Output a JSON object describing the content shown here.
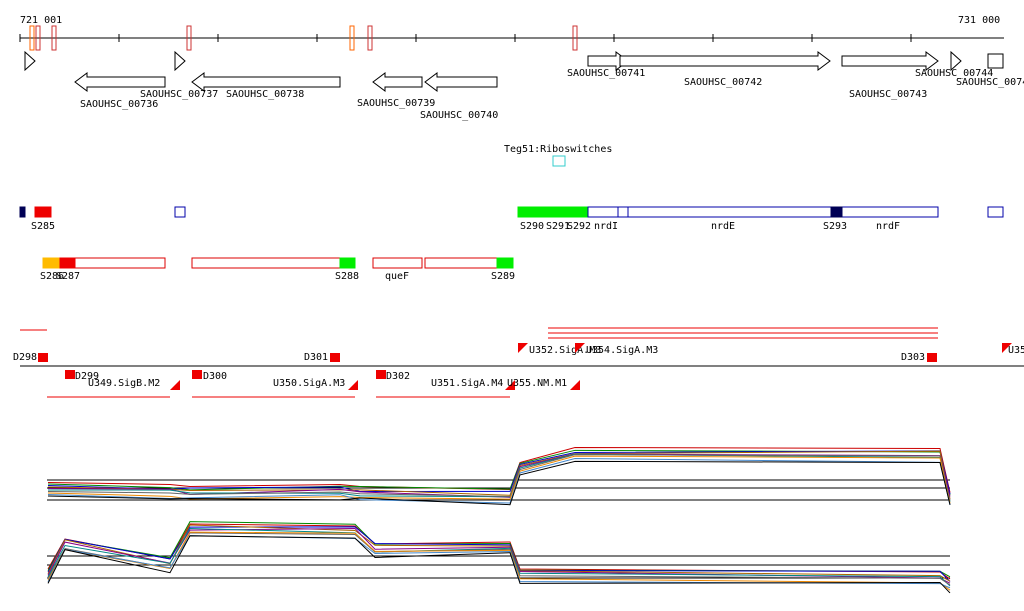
{
  "axis": {
    "start": "721 001",
    "end": "731 000"
  },
  "genes": [
    {
      "label": "SAOUHSC_00736"
    },
    {
      "label": "SAOUHSC_00737"
    },
    {
      "label": "SAOUHSC_00738"
    },
    {
      "label": "SAOUHSC_00739"
    },
    {
      "label": "SAOUHSC_00740"
    },
    {
      "label": "SAOUHSC_00741"
    },
    {
      "label": "SAOUHSC_00742"
    },
    {
      "label": "SAOUHSC_00743"
    },
    {
      "label": "SAOUHSC_00744"
    },
    {
      "label": "SAOUHSC_0074"
    }
  ],
  "riboswitch": {
    "label": "Teg51:Riboswitches"
  },
  "features_top": [
    "S285",
    "S290",
    "S291",
    "S292",
    "nrdI",
    "nrdE",
    "S293",
    "nrdF"
  ],
  "features_mid": [
    "S286",
    "S287",
    "S288",
    "queF",
    "S289"
  ],
  "promoters": [
    "D298",
    "D299",
    "U349.SigB.M2",
    "D300",
    "D301",
    "U350.SigA.M3",
    "D302",
    "U351.SigA.M4",
    "U352.SigA.M3",
    "U354.SigA.M3",
    "U355.NM.M1",
    "D303",
    "U35"
  ]
}
